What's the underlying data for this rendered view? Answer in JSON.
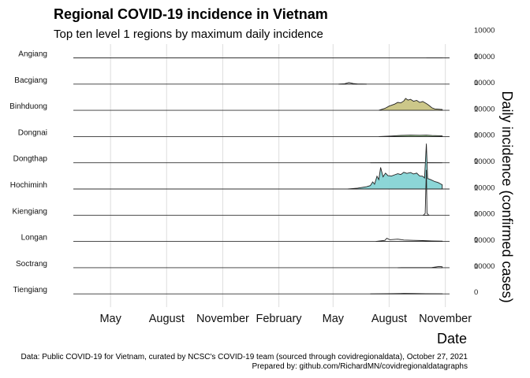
{
  "chart_data": {
    "type": "area",
    "title": "Regional COVID-19 incidence in Vietnam",
    "subtitle": "Top ten level 1 regions by maximum daily incidence",
    "xlabel": "Date",
    "ylabel": "Daily incidence (confirmed cases)",
    "x_range": [
      "2020-03-01",
      "2021-11-08"
    ],
    "x_ticks": [
      {
        "date": "2020-05-01",
        "label": "May"
      },
      {
        "date": "2020-08-01",
        "label": "August"
      },
      {
        "date": "2020-11-01",
        "label": "November"
      },
      {
        "date": "2021-02-01",
        "label": "February"
      },
      {
        "date": "2021-05-01",
        "label": "May"
      },
      {
        "date": "2021-08-01",
        "label": "August"
      },
      {
        "date": "2021-11-01",
        "label": "November"
      }
    ],
    "y_ticks": [
      0,
      10000
    ],
    "grid": true,
    "facets": [
      {
        "name": "Angiang",
        "fill": "#ffffff",
        "points": [
          [
            "2021-10-01",
            0
          ],
          [
            "2021-10-15",
            20
          ],
          [
            "2021-10-27",
            40
          ]
        ]
      },
      {
        "name": "Bacgiang",
        "fill": "#ffffff",
        "points": [
          [
            "2021-05-10",
            0
          ],
          [
            "2021-05-20",
            150
          ],
          [
            "2021-05-27",
            520
          ],
          [
            "2021-06-03",
            200
          ],
          [
            "2021-06-10",
            60
          ],
          [
            "2021-06-25",
            0
          ]
        ]
      },
      {
        "name": "Binhduong",
        "fill": "#c9c483",
        "points": [
          [
            "2021-07-15",
            0
          ],
          [
            "2021-07-25",
            700
          ],
          [
            "2021-08-01",
            1500
          ],
          [
            "2021-08-10",
            2200
          ],
          [
            "2021-08-15",
            2800
          ],
          [
            "2021-08-20",
            2600
          ],
          [
            "2021-08-25",
            3300
          ],
          [
            "2021-08-28",
            4200
          ],
          [
            "2021-09-01",
            3600
          ],
          [
            "2021-09-05",
            3900
          ],
          [
            "2021-09-10",
            3200
          ],
          [
            "2021-09-15",
            3500
          ],
          [
            "2021-09-20",
            2800
          ],
          [
            "2021-09-25",
            3100
          ],
          [
            "2021-10-01",
            2400
          ],
          [
            "2021-10-05",
            1800
          ],
          [
            "2021-10-10",
            900
          ],
          [
            "2021-10-15",
            500
          ],
          [
            "2021-10-27",
            300
          ]
        ]
      },
      {
        "name": "Dongnai",
        "fill": "#9bcf8f",
        "points": [
          [
            "2021-07-15",
            0
          ],
          [
            "2021-08-05",
            200
          ],
          [
            "2021-08-20",
            400
          ],
          [
            "2021-09-05",
            500
          ],
          [
            "2021-09-20",
            450
          ],
          [
            "2021-10-01",
            500
          ],
          [
            "2021-10-10",
            350
          ],
          [
            "2021-10-20",
            300
          ],
          [
            "2021-10-27",
            250
          ]
        ]
      },
      {
        "name": "Dongthap",
        "fill": "#ffffff",
        "points": [
          [
            "2021-07-01",
            0
          ],
          [
            "2021-08-01",
            40
          ],
          [
            "2021-09-01",
            30
          ],
          [
            "2021-10-01",
            20
          ],
          [
            "2021-10-27",
            10
          ]
        ]
      },
      {
        "name": "Hochiminh",
        "fill": "#86d4d5",
        "points": [
          [
            "2021-05-25",
            0
          ],
          [
            "2021-06-10",
            300
          ],
          [
            "2021-06-25",
            800
          ],
          [
            "2021-07-01",
            1200
          ],
          [
            "2021-07-05",
            2500
          ],
          [
            "2021-07-08",
            1700
          ],
          [
            "2021-07-12",
            4500
          ],
          [
            "2021-07-15",
            3300
          ],
          [
            "2021-07-18",
            7600
          ],
          [
            "2021-07-22",
            4300
          ],
          [
            "2021-07-26",
            5600
          ],
          [
            "2021-07-30",
            4700
          ],
          [
            "2021-08-05",
            4600
          ],
          [
            "2021-08-10",
            5000
          ],
          [
            "2021-08-15",
            5400
          ],
          [
            "2021-08-20",
            5100
          ],
          [
            "2021-08-25",
            5900
          ],
          [
            "2021-08-30",
            5500
          ],
          [
            "2021-09-05",
            5800
          ],
          [
            "2021-09-10",
            5300
          ],
          [
            "2021-09-15",
            5600
          ],
          [
            "2021-09-20",
            4600
          ],
          [
            "2021-09-25",
            4500
          ],
          [
            "2021-09-28",
            3900
          ],
          [
            "2021-10-01",
            16000
          ],
          [
            "2021-10-03",
            3700
          ],
          [
            "2021-10-08",
            3300
          ],
          [
            "2021-10-15",
            2600
          ],
          [
            "2021-10-20",
            2300
          ],
          [
            "2021-10-27",
            1500
          ]
        ]
      },
      {
        "name": "Kiengiang",
        "fill": "#ffffff",
        "points": [
          [
            "2021-09-26",
            0
          ],
          [
            "2021-09-29",
            600
          ],
          [
            "2021-10-01",
            16000
          ],
          [
            "2021-10-02",
            700
          ],
          [
            "2021-10-05",
            0
          ]
        ]
      },
      {
        "name": "Longan",
        "fill": "#ffffff",
        "points": [
          [
            "2021-07-10",
            0
          ],
          [
            "2021-07-25",
            400
          ],
          [
            "2021-07-28",
            1100
          ],
          [
            "2021-08-02",
            600
          ],
          [
            "2021-08-15",
            800
          ],
          [
            "2021-08-25",
            500
          ],
          [
            "2021-09-10",
            400
          ],
          [
            "2021-09-25",
            300
          ],
          [
            "2021-10-10",
            200
          ],
          [
            "2021-10-27",
            100
          ]
        ]
      },
      {
        "name": "Soctrang",
        "fill": "#ffffff",
        "points": [
          [
            "2021-08-15",
            0
          ],
          [
            "2021-09-15",
            30
          ],
          [
            "2021-10-10",
            60
          ],
          [
            "2021-10-18",
            300
          ],
          [
            "2021-10-22",
            450
          ],
          [
            "2021-10-27",
            300
          ]
        ]
      },
      {
        "name": "Tiengiang",
        "fill": "#ffffff",
        "points": [
          [
            "2021-07-01",
            0
          ],
          [
            "2021-08-10",
            120
          ],
          [
            "2021-08-25",
            180
          ],
          [
            "2021-09-10",
            140
          ],
          [
            "2021-10-01",
            60
          ],
          [
            "2021-10-27",
            30
          ]
        ]
      }
    ]
  },
  "caption": {
    "line1": "Data: Public COVID-19 for Vietnam, curated by NCSC's COVID-19 team (sourced through covidregionaldata), October 27, 2021",
    "line2": "Prepared by: github.com/RichardMN/covidregionaldatagraphs"
  }
}
